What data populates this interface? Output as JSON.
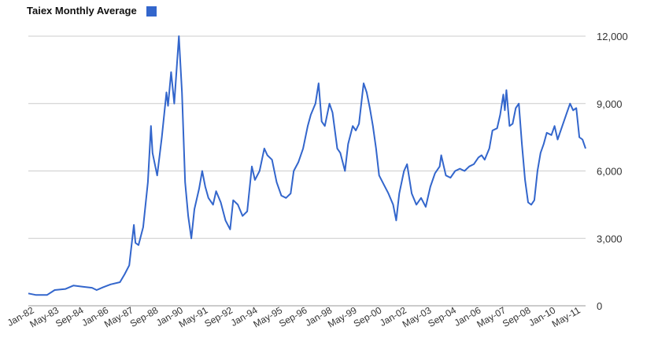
{
  "chart_data": {
    "type": "line",
    "title": "",
    "xlabel": "",
    "ylabel": "",
    "ylim": [
      0,
      12000
    ],
    "yticks": [
      0,
      3000,
      6000,
      9000,
      12000
    ],
    "ytick_labels": [
      "0",
      "3,000",
      "6,000",
      "9,000",
      "12,000"
    ],
    "xtick_labels": [
      "Jan-82",
      "May-83",
      "Sep-84",
      "Jan-86",
      "May-87",
      "Sep-88",
      "Jan-90",
      "May-91",
      "Sep-92",
      "Jan-94",
      "May-95",
      "Sep-96",
      "Jan-98",
      "May-99",
      "Sep-00",
      "Jan-02",
      "May-03",
      "Sep-04",
      "Jan-06",
      "May-07",
      "Sep-08",
      "Jan-10",
      "May-11"
    ],
    "grid": true,
    "legend_position": "top-left",
    "series": [
      {
        "name": "Taiex Monthly Average",
        "color": "#3366cc",
        "points": [
          [
            "1982-01",
            550
          ],
          [
            "1982-06",
            480
          ],
          [
            "1983-01",
            480
          ],
          [
            "1983-06",
            700
          ],
          [
            "1984-01",
            750
          ],
          [
            "1984-06",
            900
          ],
          [
            "1984-12",
            850
          ],
          [
            "1985-06",
            800
          ],
          [
            "1985-09",
            700
          ],
          [
            "1986-01",
            820
          ],
          [
            "1986-06",
            950
          ],
          [
            "1986-12",
            1050
          ],
          [
            "1987-03",
            1400
          ],
          [
            "1987-06",
            1800
          ],
          [
            "1987-09",
            3600
          ],
          [
            "1987-10",
            2800
          ],
          [
            "1987-12",
            2700
          ],
          [
            "1988-03",
            3500
          ],
          [
            "1988-06",
            5500
          ],
          [
            "1988-08",
            8000
          ],
          [
            "1988-09",
            6800
          ],
          [
            "1988-12",
            5800
          ],
          [
            "1989-03",
            7500
          ],
          [
            "1989-06",
            9500
          ],
          [
            "1989-07",
            8900
          ],
          [
            "1989-09",
            10400
          ],
          [
            "1989-11",
            9000
          ],
          [
            "1990-02",
            12000
          ],
          [
            "1990-04",
            9500
          ],
          [
            "1990-06",
            5500
          ],
          [
            "1990-08",
            4000
          ],
          [
            "1990-10",
            3000
          ],
          [
            "1990-12",
            4300
          ],
          [
            "1991-03",
            5200
          ],
          [
            "1991-05",
            6000
          ],
          [
            "1991-07",
            5300
          ],
          [
            "1991-09",
            4800
          ],
          [
            "1991-12",
            4500
          ],
          [
            "1992-02",
            5100
          ],
          [
            "1992-05",
            4600
          ],
          [
            "1992-08",
            3800
          ],
          [
            "1992-11",
            3400
          ],
          [
            "1993-01",
            4700
          ],
          [
            "1993-04",
            4500
          ],
          [
            "1993-07",
            4000
          ],
          [
            "1993-10",
            4200
          ],
          [
            "1994-01",
            6200
          ],
          [
            "1994-03",
            5600
          ],
          [
            "1994-06",
            6000
          ],
          [
            "1994-09",
            7000
          ],
          [
            "1994-11",
            6700
          ],
          [
            "1995-02",
            6500
          ],
          [
            "1995-05",
            5500
          ],
          [
            "1995-08",
            4900
          ],
          [
            "1995-11",
            4800
          ],
          [
            "1996-02",
            5000
          ],
          [
            "1996-04",
            6000
          ],
          [
            "1996-07",
            6400
          ],
          [
            "1996-10",
            7000
          ],
          [
            "1997-01",
            8000
          ],
          [
            "1997-03",
            8500
          ],
          [
            "1997-06",
            9000
          ],
          [
            "1997-08",
            9900
          ],
          [
            "1997-10",
            8200
          ],
          [
            "1997-12",
            8000
          ],
          [
            "1998-03",
            9000
          ],
          [
            "1998-05",
            8600
          ],
          [
            "1998-08",
            7000
          ],
          [
            "1998-10",
            6800
          ],
          [
            "1999-01",
            6000
          ],
          [
            "1999-03",
            7200
          ],
          [
            "1999-06",
            8000
          ],
          [
            "1999-08",
            7800
          ],
          [
            "1999-10",
            8100
          ],
          [
            "2000-01",
            9900
          ],
          [
            "2000-03",
            9500
          ],
          [
            "2000-05",
            8800
          ],
          [
            "2000-07",
            8000
          ],
          [
            "2000-09",
            7000
          ],
          [
            "2000-11",
            5800
          ],
          [
            "2001-02",
            5400
          ],
          [
            "2001-05",
            5000
          ],
          [
            "2001-08",
            4500
          ],
          [
            "2001-10",
            3800
          ],
          [
            "2001-12",
            5000
          ],
          [
            "2002-03",
            6000
          ],
          [
            "2002-05",
            6300
          ],
          [
            "2002-08",
            5000
          ],
          [
            "2002-11",
            4500
          ],
          [
            "2003-02",
            4800
          ],
          [
            "2003-05",
            4400
          ],
          [
            "2003-08",
            5300
          ],
          [
            "2003-11",
            5900
          ],
          [
            "2004-02",
            6200
          ],
          [
            "2004-03",
            6700
          ],
          [
            "2004-06",
            5800
          ],
          [
            "2004-09",
            5700
          ],
          [
            "2004-12",
            6000
          ],
          [
            "2005-03",
            6100
          ],
          [
            "2005-06",
            6000
          ],
          [
            "2005-09",
            6200
          ],
          [
            "2005-12",
            6300
          ],
          [
            "2006-03",
            6600
          ],
          [
            "2006-05",
            6700
          ],
          [
            "2006-07",
            6500
          ],
          [
            "2006-10",
            7000
          ],
          [
            "2006-12",
            7800
          ],
          [
            "2007-03",
            7900
          ],
          [
            "2007-05",
            8500
          ],
          [
            "2007-07",
            9400
          ],
          [
            "2007-08",
            8700
          ],
          [
            "2007-09",
            9600
          ],
          [
            "2007-11",
            8000
          ],
          [
            "2008-01",
            8100
          ],
          [
            "2008-03",
            8800
          ],
          [
            "2008-05",
            9000
          ],
          [
            "2008-07",
            7200
          ],
          [
            "2008-09",
            5600
          ],
          [
            "2008-11",
            4600
          ],
          [
            "2009-01",
            4500
          ],
          [
            "2009-03",
            4700
          ],
          [
            "2009-05",
            6000
          ],
          [
            "2009-07",
            6800
          ],
          [
            "2009-09",
            7200
          ],
          [
            "2009-11",
            7700
          ],
          [
            "2010-02",
            7600
          ],
          [
            "2010-04",
            8000
          ],
          [
            "2010-06",
            7400
          ],
          [
            "2010-09",
            8000
          ],
          [
            "2010-12",
            8600
          ],
          [
            "2011-02",
            9000
          ],
          [
            "2011-04",
            8700
          ],
          [
            "2011-06",
            8800
          ],
          [
            "2011-08",
            7500
          ],
          [
            "2011-10",
            7400
          ],
          [
            "2011-12",
            7000
          ]
        ]
      }
    ]
  }
}
